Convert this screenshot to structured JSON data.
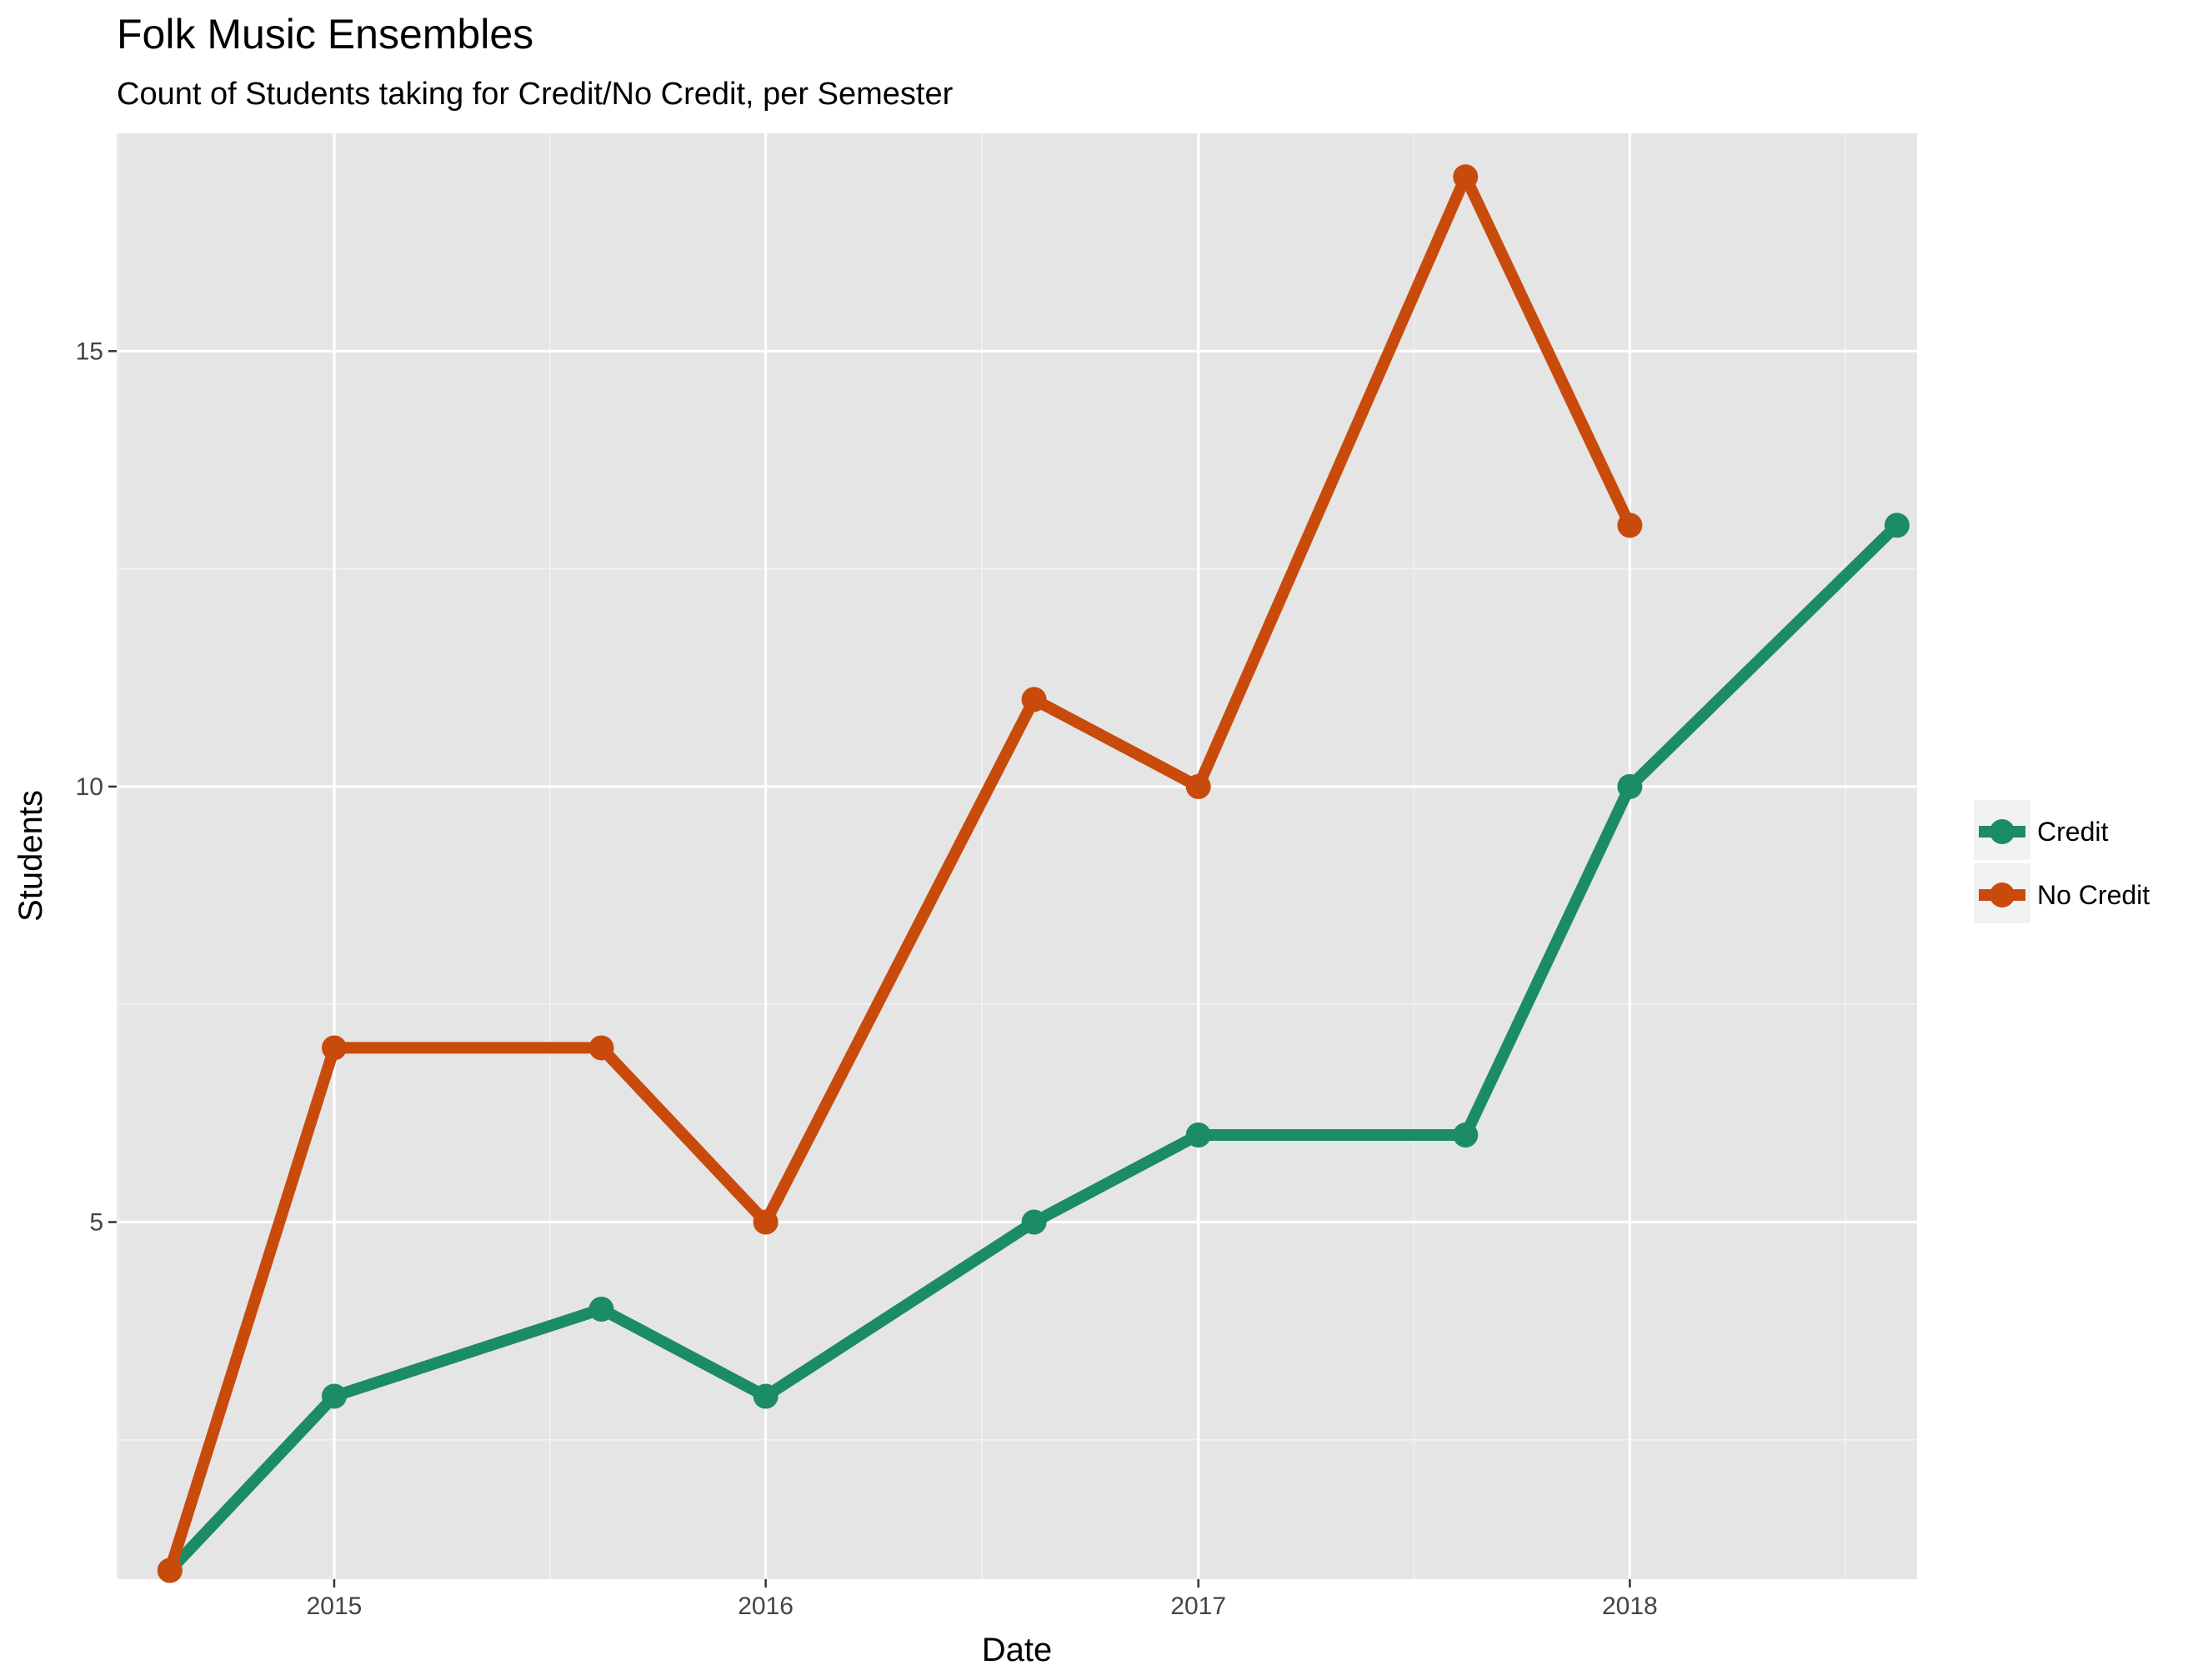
{
  "chart_data": {
    "type": "line",
    "title": "Folk Music Ensembles",
    "subtitle": "Count of Students taking for Credit/No Credit, per Semester",
    "xlabel": "Date",
    "ylabel": "Students",
    "x_ticks": [
      {
        "label": "2015",
        "value": "2015-01-01"
      },
      {
        "label": "2016",
        "value": "2016-01-01"
      },
      {
        "label": "2017",
        "value": "2017-01-01"
      },
      {
        "label": "2018",
        "value": "2018-01-01"
      }
    ],
    "y_ticks": [
      5,
      10,
      15
    ],
    "ylim": [
      0.9,
      17.5
    ],
    "xlim": [
      "2014-07-01",
      "2018-09-01"
    ],
    "grid": true,
    "legend_position": "right",
    "series": [
      {
        "name": "Credit",
        "color": "#1b8c65",
        "points": [
          {
            "x": "2014-08-15",
            "y": 1
          },
          {
            "x": "2015-01-01",
            "y": 3
          },
          {
            "x": "2015-08-15",
            "y": 4
          },
          {
            "x": "2016-01-01",
            "y": 3
          },
          {
            "x": "2016-08-15",
            "y": 5
          },
          {
            "x": "2017-01-01",
            "y": 6
          },
          {
            "x": "2017-08-15",
            "y": 6
          },
          {
            "x": "2018-01-01",
            "y": 10
          },
          {
            "x": "2018-08-15",
            "y": 13
          }
        ]
      },
      {
        "name": "No Credit",
        "color": "#c94b0c",
        "points": [
          {
            "x": "2014-08-15",
            "y": 1
          },
          {
            "x": "2015-01-01",
            "y": 7
          },
          {
            "x": "2015-08-15",
            "y": 7
          },
          {
            "x": "2016-01-01",
            "y": 5
          },
          {
            "x": "2016-08-15",
            "y": 11
          },
          {
            "x": "2017-01-01",
            "y": 10
          },
          {
            "x": "2017-08-15",
            "y": 17
          },
          {
            "x": "2018-01-01",
            "y": 13
          }
        ]
      }
    ]
  }
}
